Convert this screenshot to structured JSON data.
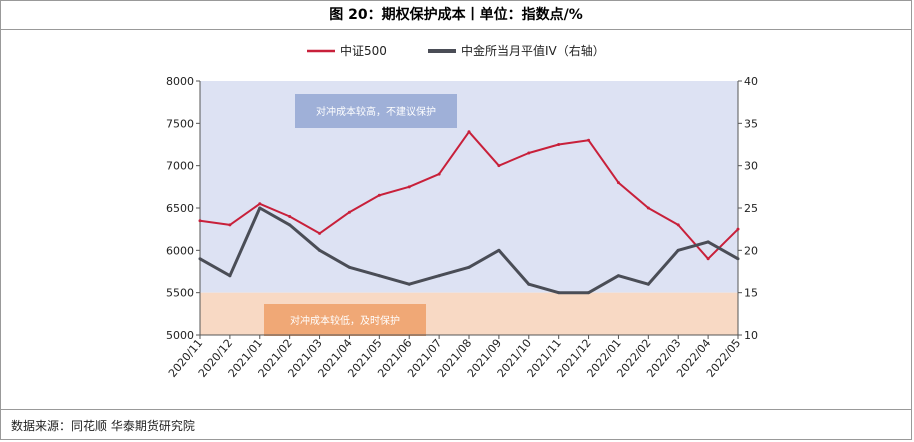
{
  "header": {
    "title": "图 20：期权保护成本丨单位：指数点/%"
  },
  "footer": {
    "source": "数据来源：同花顺 华泰期货研究院"
  },
  "chart_data": {
    "type": "line",
    "legend_position": "top-center",
    "grid": false,
    "x_ticks": [
      "2020/11",
      "2020/12",
      "2021/01",
      "2021/02",
      "2021/03",
      "2021/04",
      "2021/05",
      "2021/06",
      "2021/07",
      "2021/08",
      "2021/09",
      "2021/10",
      "2021/11",
      "2021/12",
      "2022/01",
      "2022/02",
      "2022/03",
      "2022/04",
      "2022/05"
    ],
    "y_left": {
      "min": 5000,
      "max": 8000,
      "ticks": [
        5000,
        5500,
        6000,
        6500,
        7000,
        7500,
        8000
      ]
    },
    "y_right": {
      "min": 10,
      "max": 40,
      "ticks": [
        10,
        15,
        20,
        25,
        30,
        35,
        40
      ]
    },
    "bands": [
      {
        "label": "对冲成本较高，不建议保护",
        "from": 15,
        "to": 40,
        "axis": "right",
        "color": "#dde2f3",
        "label_color": "#9fb0d8"
      },
      {
        "label": "对冲成本较低，及时保护",
        "from": 10,
        "to": 15,
        "axis": "right",
        "color": "#f8d9c4",
        "label_color": "#f0a876"
      }
    ],
    "series": [
      {
        "name": "中证500",
        "axis": "left",
        "color": "#c8203a",
        "x": [
          "2020/11",
          "2020/12",
          "2021/01",
          "2021/02",
          "2021/03",
          "2021/04",
          "2021/05",
          "2021/06",
          "2021/07",
          "2021/08",
          "2021/09",
          "2021/10",
          "2021/11",
          "2021/12",
          "2022/01",
          "2022/02",
          "2022/03",
          "2022/04",
          "2022/05"
        ],
        "values": [
          6350,
          6300,
          6550,
          6400,
          6200,
          6450,
          6650,
          6750,
          6900,
          7400,
          7000,
          7150,
          7250,
          7300,
          6800,
          6500,
          6300,
          5900,
          6250
        ]
      },
      {
        "name": "中金所当月平值IV（右轴）",
        "axis": "right",
        "color": "#4a4d56",
        "x": [
          "2020/11",
          "2020/12",
          "2021/01",
          "2021/02",
          "2021/03",
          "2021/04",
          "2021/05",
          "2021/06",
          "2021/07",
          "2021/08",
          "2021/09",
          "2021/10",
          "2021/11",
          "2021/12",
          "2022/01",
          "2022/02",
          "2022/03",
          "2022/04",
          "2022/05"
        ],
        "values": [
          19,
          17,
          25,
          23,
          20,
          18,
          17,
          16,
          17,
          18,
          20,
          16,
          15,
          15,
          17,
          16,
          20,
          21,
          19
        ]
      }
    ]
  }
}
